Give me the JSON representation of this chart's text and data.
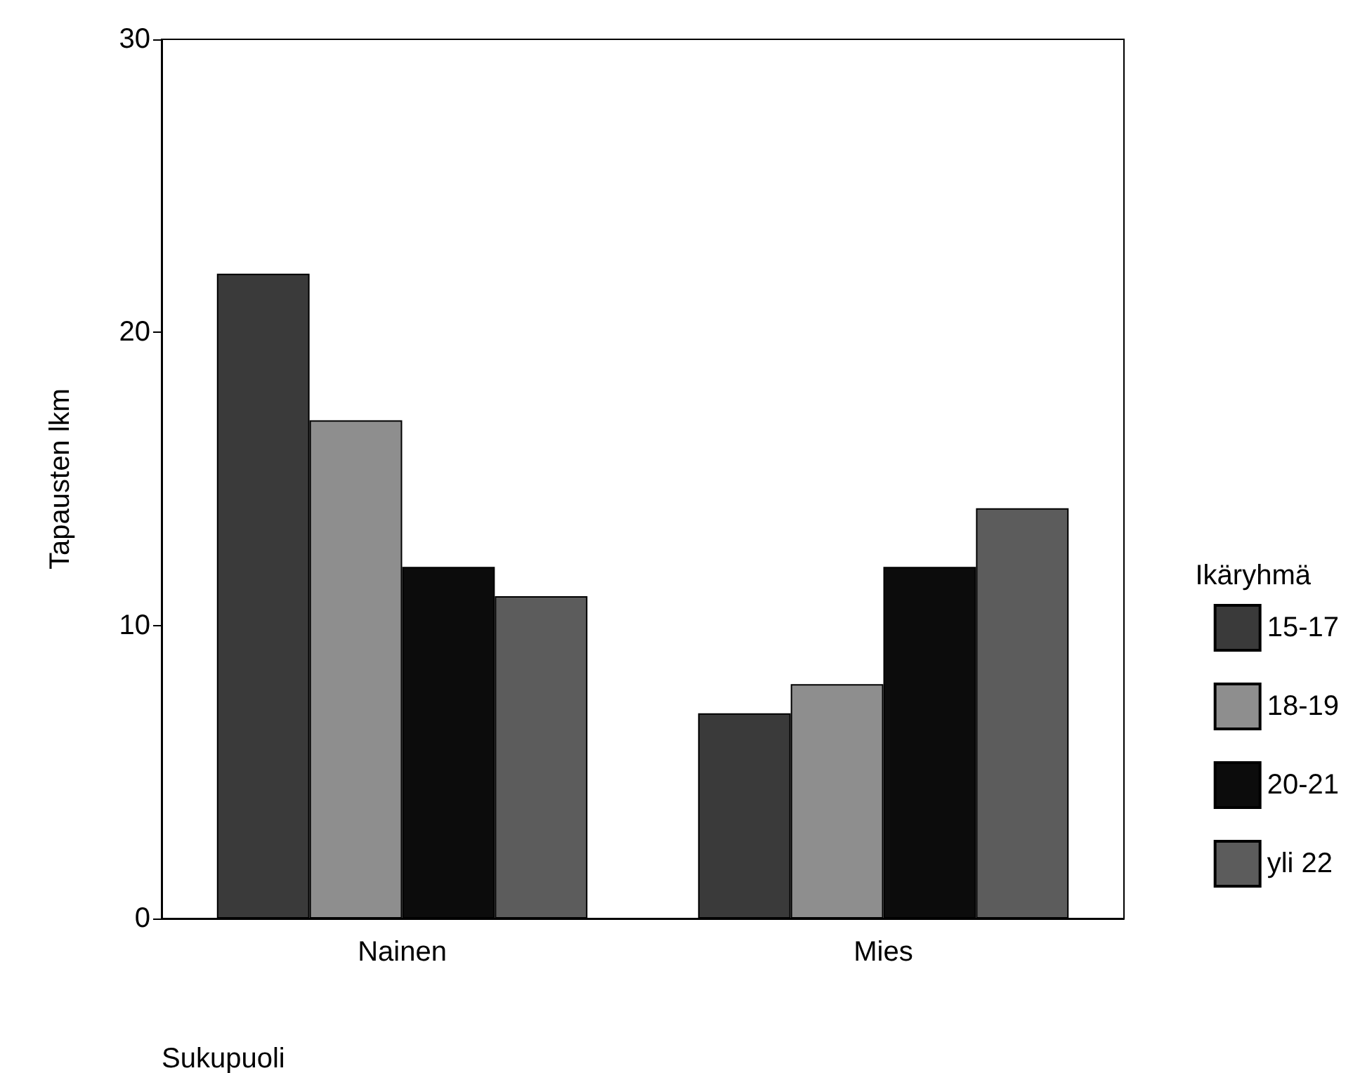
{
  "chart_data": {
    "type": "bar",
    "categories": [
      "Nainen",
      "Mies"
    ],
    "series": [
      {
        "name": "15-17",
        "color": "#3a3a3a",
        "values": [
          22,
          7
        ]
      },
      {
        "name": "18-19",
        "color": "#8e8e8e",
        "values": [
          17,
          8
        ]
      },
      {
        "name": "20-21",
        "color": "#0c0c0c",
        "values": [
          12,
          12
        ]
      },
      {
        "name": "yli 22",
        "color": "#5c5c5c",
        "values": [
          11,
          14
        ]
      }
    ],
    "xlabel": "Sukupuoli",
    "ylabel": "Tapausten lkm",
    "legend_title": "Ikäryhmä",
    "ylim": [
      0,
      30
    ],
    "yticks": [
      0,
      10,
      20,
      30
    ],
    "grid": false,
    "legend": "right"
  }
}
